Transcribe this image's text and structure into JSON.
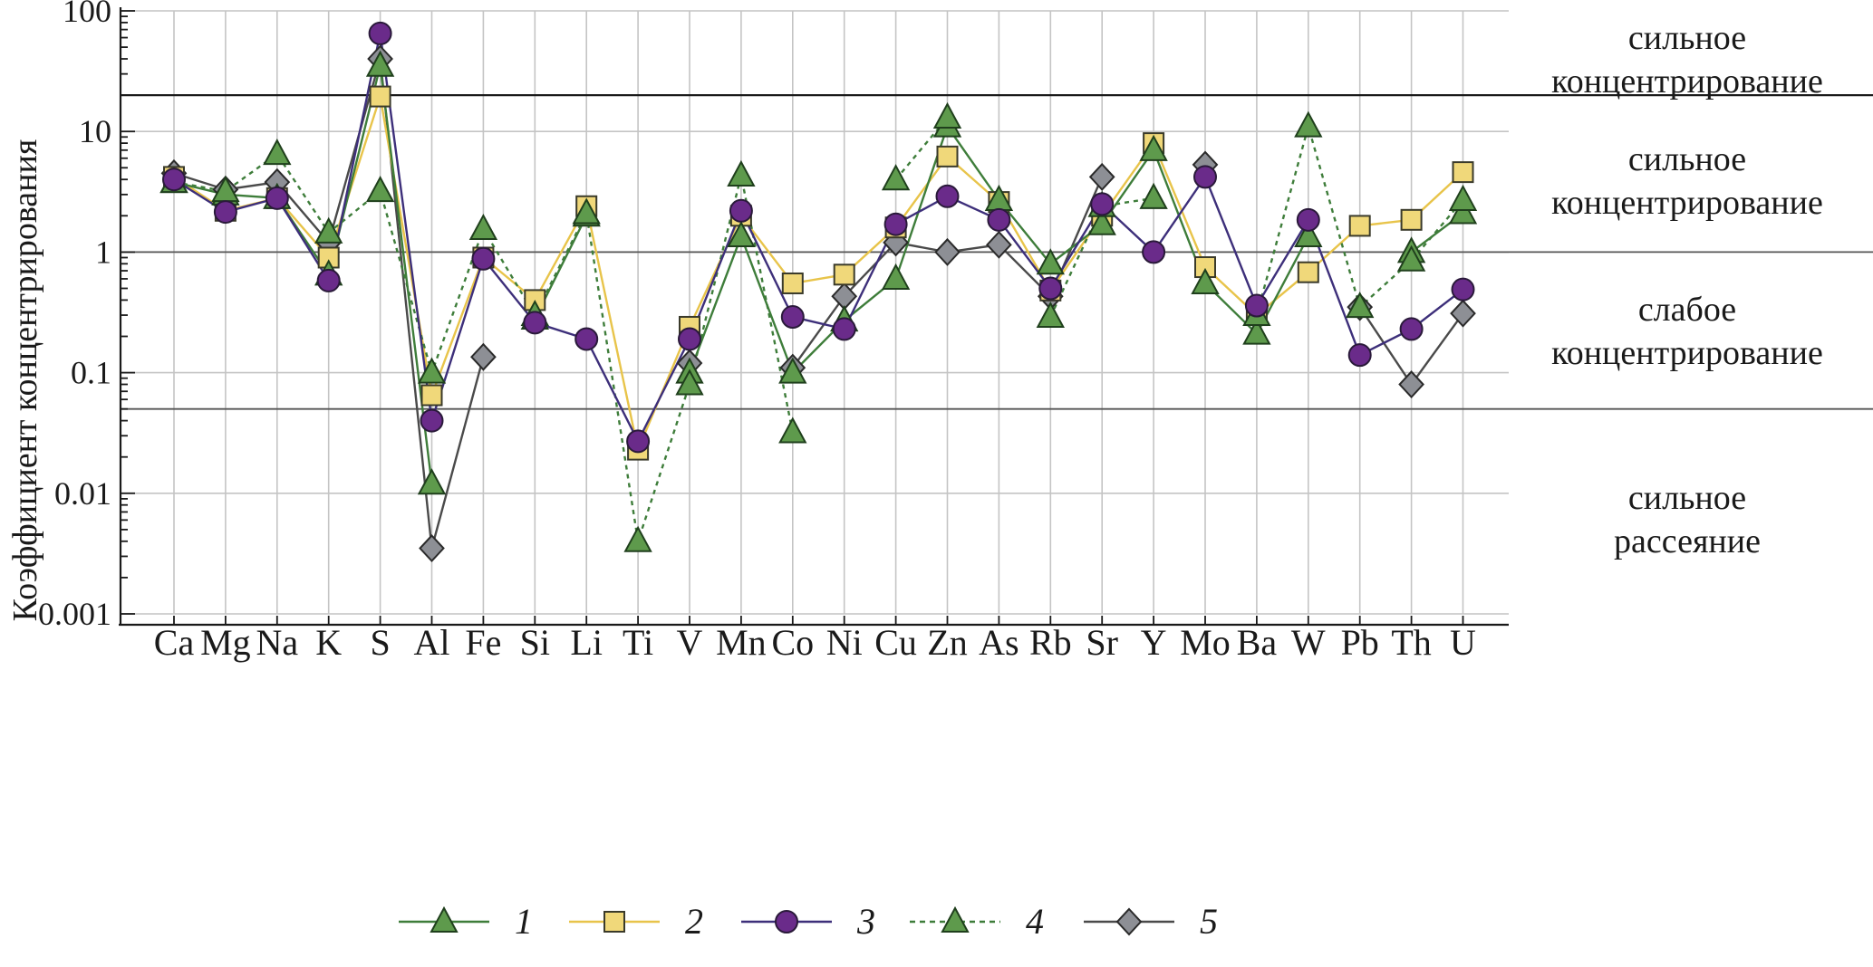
{
  "chart_data": {
    "type": "line",
    "ylabel": "Коэффициент концентрирования",
    "yscale": "log",
    "ylim": [
      0.001,
      100
    ],
    "yticks": [
      "0.001",
      "0.01",
      "0.1",
      "1",
      "10",
      "100"
    ],
    "categories": [
      "Ca",
      "Mg",
      "Na",
      "K",
      "S",
      "Al",
      "Fe",
      "Si",
      "Li",
      "Ti",
      "V",
      "Mn",
      "Co",
      "Ni",
      "Cu",
      "Zn",
      "As",
      "Rb",
      "Sr",
      "Y",
      "Mo",
      "Ba",
      "W",
      "Pb",
      "Th",
      "U"
    ],
    "grid": true,
    "thresholds": [
      20,
      1,
      0.05
    ],
    "zones": [
      {
        "line1": "сильное",
        "line2": "концентрирование"
      },
      {
        "line1": "сильное",
        "line2": "концентрирование"
      },
      {
        "line1": "слабое",
        "line2": "концентрирование"
      },
      {
        "line1": "сильное",
        "line2": "рассеяние"
      }
    ],
    "legend_position": "bottom",
    "series": [
      {
        "name": "1",
        "color": "#3e7d3a",
        "marker": "triangle",
        "marker_fill": "#5e9a4c",
        "dash": "solid",
        "values": [
          3.8,
          3.0,
          2.8,
          0.65,
          35,
          0.012,
          null,
          0.28,
          2.0,
          null,
          0.1,
          1.35,
          0.1,
          0.27,
          0.6,
          11,
          2.7,
          0.8,
          1.7,
          7,
          0.55,
          0.21,
          1.35,
          null,
          1.0,
          2.1
        ]
      },
      {
        "name": "2",
        "color": "#e8c44a",
        "marker": "square",
        "marker_fill": "#f0d87a",
        "dash": "solid",
        "values": [
          4.2,
          2.2,
          2.8,
          0.9,
          19.5,
          0.065,
          0.9,
          0.4,
          2.4,
          0.023,
          0.24,
          2.0,
          0.55,
          0.65,
          1.6,
          6.2,
          2.6,
          0.48,
          2.0,
          8,
          0.75,
          0.3,
          0.68,
          1.65,
          1.85,
          4.6
        ]
      },
      {
        "name": "3",
        "color": "#3d2f7a",
        "marker": "circle",
        "marker_fill": "#6a2b8a",
        "dash": "solid",
        "values": [
          4.0,
          2.15,
          2.8,
          0.58,
          65,
          0.04,
          0.88,
          0.26,
          0.19,
          0.027,
          0.19,
          2.2,
          0.29,
          0.23,
          1.7,
          2.9,
          1.85,
          0.5,
          2.5,
          1.0,
          4.2,
          0.36,
          1.85,
          0.14,
          0.23,
          0.49
        ]
      },
      {
        "name": "4",
        "color": "#3e7d3a",
        "marker": "triangle",
        "marker_fill": "#5e9a4c",
        "dash": "dotted",
        "values": [
          3.8,
          3.2,
          6.5,
          1.45,
          3.2,
          0.1,
          1.55,
          0.3,
          2.1,
          0.004,
          0.08,
          4.3,
          0.032,
          null,
          4.0,
          13,
          null,
          0.29,
          2.4,
          2.8,
          null,
          0.3,
          11,
          0.35,
          0.85,
          2.7
        ]
      },
      {
        "name": "5",
        "color": "#4a4a4a",
        "marker": "diamond",
        "marker_fill": "#8d8f95",
        "dash": "solid",
        "values": [
          4.5,
          3.3,
          3.8,
          1.2,
          40,
          0.0035,
          0.135,
          null,
          null,
          null,
          0.12,
          null,
          0.11,
          0.43,
          1.2,
          1.0,
          1.15,
          0.43,
          4.2,
          null,
          5.3,
          null,
          null,
          0.35,
          0.08,
          0.31
        ]
      }
    ]
  }
}
